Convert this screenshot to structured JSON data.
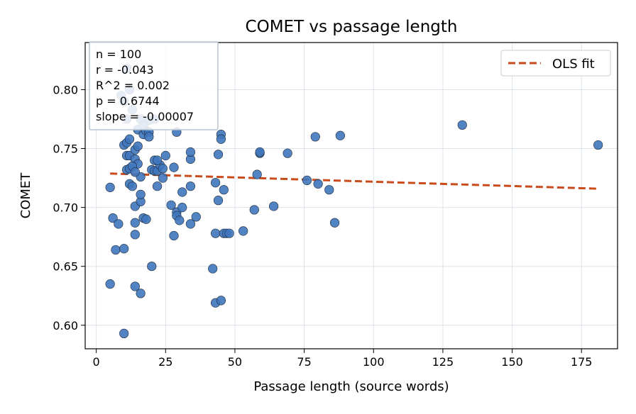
{
  "chart_data": {
    "type": "scatter",
    "title": "COMET vs passage length",
    "xlabel": "Passage length (source words)",
    "ylabel": "COMET",
    "xlim": [
      -4,
      188
    ],
    "ylim": [
      0.58,
      0.84
    ],
    "x_ticks": [
      0,
      25,
      50,
      75,
      100,
      125,
      150,
      175
    ],
    "y_ticks": [
      0.6,
      0.65,
      0.7,
      0.75,
      0.8
    ],
    "grid": true,
    "legend_position": "top-right",
    "stats_box": {
      "position": "top-left",
      "lines": [
        "n = 100",
        "r = -0.043",
        "R^2 = 0.002",
        "p = 0.6744",
        "slope = -0.00007"
      ]
    },
    "point_color": "#3f76bd",
    "fit_color": "#c94a1b",
    "fit_line": {
      "name": "OLS fit",
      "x": [
        5,
        181
      ],
      "y": [
        0.7288,
        0.7159
      ]
    },
    "series": [
      {
        "x": [
          5,
          5,
          6,
          7,
          8,
          9,
          10,
          10,
          10,
          11,
          11,
          11,
          11,
          12,
          12,
          12,
          12,
          13,
          13,
          14,
          14,
          14,
          14,
          14,
          14,
          15,
          15,
          16,
          16,
          16,
          16,
          16,
          17,
          17,
          18,
          18,
          19,
          19,
          20,
          20,
          21,
          21,
          21,
          22,
          22,
          23,
          24,
          25,
          27,
          28,
          28,
          29,
          29,
          29,
          30,
          31,
          31,
          34,
          34,
          34,
          34,
          36,
          42,
          43,
          43,
          43,
          44,
          44,
          45,
          45,
          45,
          46,
          46,
          47,
          48,
          53,
          57,
          58,
          59,
          59,
          64,
          69,
          76,
          79,
          80,
          84,
          86,
          88,
          132,
          181,
          10,
          11,
          12,
          13,
          14,
          15,
          17,
          19,
          22,
          24
        ],
        "y": [
          0.717,
          0.635,
          0.691,
          0.664,
          0.686,
          0.795,
          0.665,
          0.593,
          0.753,
          0.732,
          0.744,
          0.755,
          0.818,
          0.758,
          0.744,
          0.72,
          0.733,
          0.783,
          0.718,
          0.701,
          0.687,
          0.677,
          0.633,
          0.741,
          0.749,
          0.766,
          0.737,
          0.627,
          0.705,
          0.711,
          0.726,
          0.775,
          0.762,
          0.691,
          0.765,
          0.69,
          0.764,
          0.774,
          0.65,
          0.732,
          0.731,
          0.74,
          0.775,
          0.718,
          0.731,
          0.736,
          0.733,
          0.744,
          0.702,
          0.676,
          0.734,
          0.764,
          0.696,
          0.693,
          0.689,
          0.7,
          0.713,
          0.686,
          0.741,
          0.747,
          0.718,
          0.692,
          0.648,
          0.678,
          0.619,
          0.721,
          0.706,
          0.745,
          0.762,
          0.758,
          0.621,
          0.715,
          0.678,
          0.678,
          0.678,
          0.68,
          0.698,
          0.728,
          0.746,
          0.747,
          0.701,
          0.746,
          0.723,
          0.76,
          0.72,
          0.715,
          0.687,
          0.761,
          0.77,
          0.753,
          0.79,
          0.775,
          0.8,
          0.735,
          0.73,
          0.752,
          0.77,
          0.76,
          0.74,
          0.725
        ]
      }
    ]
  }
}
